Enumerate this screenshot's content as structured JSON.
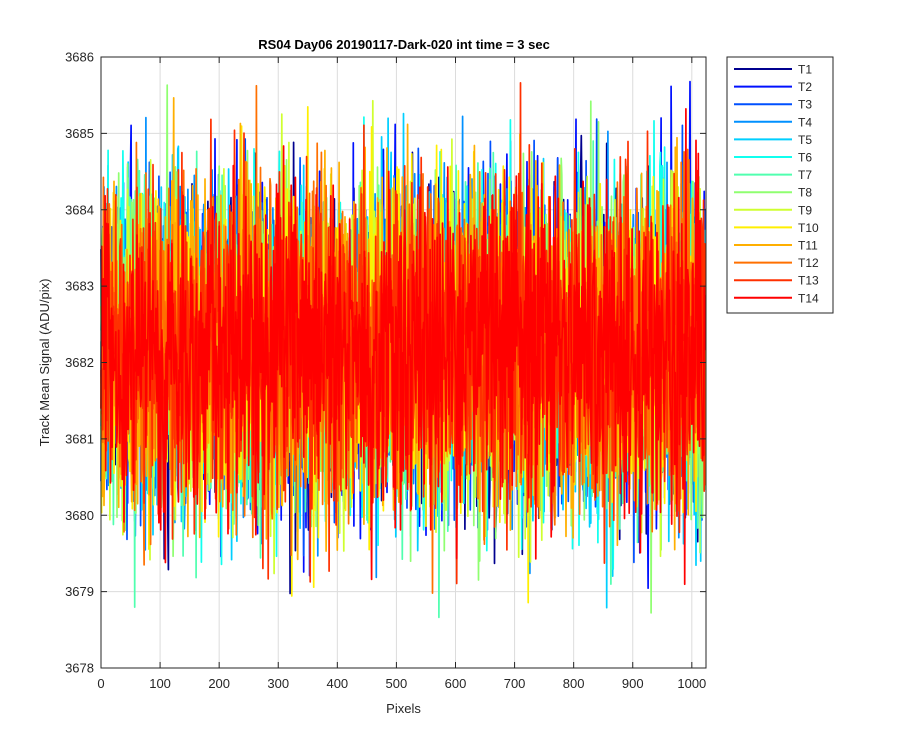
{
  "chart_data": {
    "type": "line",
    "title": "RS04 Day06 20190117-Dark-020 int time = 3 sec",
    "xlabel": "Pixels",
    "ylabel": "Track Mean Signal (ADU/pix)",
    "xlim": [
      0,
      1024
    ],
    "ylim": [
      3678,
      3686
    ],
    "xticks": [
      "0",
      "100",
      "200",
      "300",
      "400",
      "500",
      "600",
      "700",
      "800",
      "900",
      "1000"
    ],
    "yticks": [
      "3678",
      "3679",
      "3680",
      "3681",
      "3682",
      "3683",
      "3684",
      "3685",
      "3686"
    ],
    "grid": true,
    "legend_position": "outside-top-right",
    "n_points": 1024,
    "noise_model": {
      "mean": 3682.2,
      "std": 1.05,
      "min": 3678.4,
      "max": 3686
    },
    "series": [
      {
        "name": "T1",
        "color": "#00008f"
      },
      {
        "name": "T2",
        "color": "#0010ff"
      },
      {
        "name": "T3",
        "color": "#0050ff"
      },
      {
        "name": "T4",
        "color": "#0090ff"
      },
      {
        "name": "T5",
        "color": "#00cfff"
      },
      {
        "name": "T6",
        "color": "#10ffef"
      },
      {
        "name": "T7",
        "color": "#50ffaf"
      },
      {
        "name": "T8",
        "color": "#8fff70"
      },
      {
        "name": "T9",
        "color": "#cfff30"
      },
      {
        "name": "T10",
        "color": "#ffef00"
      },
      {
        "name": "T11",
        "color": "#ffaf00"
      },
      {
        "name": "T12",
        "color": "#ff7000"
      },
      {
        "name": "T13",
        "color": "#ff3000"
      },
      {
        "name": "T14",
        "color": "#ff0000"
      }
    ]
  }
}
